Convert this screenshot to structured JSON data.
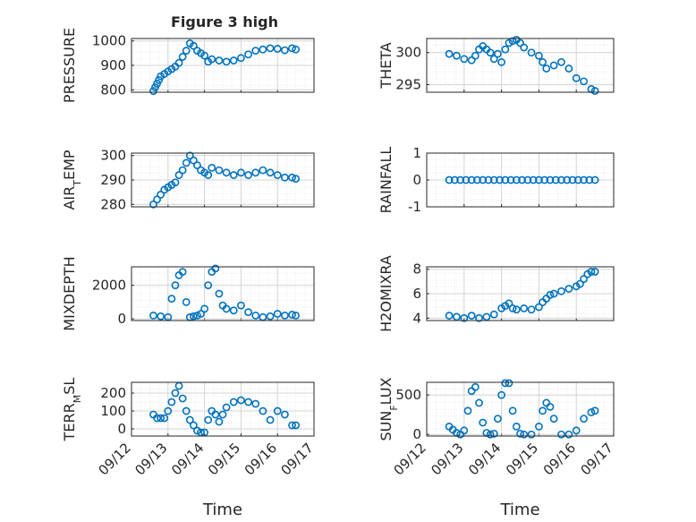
{
  "figure": {
    "title": "Figure 3 high",
    "marker_color": "#0072BD",
    "axis_color": "#262626",
    "grid_color": "#d4d4d4",
    "minor_grid_color": "#e6e6e6",
    "background": "#ffffff"
  },
  "chart_data": [
    {
      "type": "scatter",
      "title": "Figure 3 high",
      "ylabel": "PRESSURE",
      "ylim": [
        790,
        1010
      ],
      "yticks": [
        800,
        900,
        1000
      ],
      "ytick_labels": [
        "800",
        "900",
        "1000"
      ],
      "xlim": [
        0,
        5
      ],
      "xticks": [
        0,
        1,
        2,
        3,
        4,
        5
      ],
      "xtick_labels": [],
      "grid": true,
      "x": [
        0.6,
        0.65,
        0.7,
        0.75,
        0.8,
        0.9,
        1.0,
        1.1,
        1.2,
        1.3,
        1.4,
        1.5,
        1.6,
        1.7,
        1.8,
        1.9,
        2.0,
        2.1,
        2.2,
        2.4,
        2.6,
        2.8,
        3.0,
        3.2,
        3.4,
        3.6,
        3.8,
        4.0,
        4.2,
        4.4,
        4.5
      ],
      "values": [
        795,
        810,
        825,
        840,
        855,
        865,
        875,
        885,
        895,
        910,
        935,
        960,
        990,
        980,
        960,
        950,
        940,
        915,
        925,
        920,
        915,
        920,
        930,
        945,
        960,
        965,
        970,
        968,
        962,
        970,
        965
      ]
    },
    {
      "type": "scatter",
      "ylabel": "THETA",
      "ylim": [
        293.8,
        302.2
      ],
      "yticks": [
        295,
        300
      ],
      "ytick_labels": [
        "295",
        "300"
      ],
      "xlim": [
        0,
        5
      ],
      "xticks": [
        0,
        1,
        2,
        3,
        4,
        5
      ],
      "xtick_labels": [],
      "grid": true,
      "x": [
        0.6,
        0.8,
        1.0,
        1.2,
        1.3,
        1.4,
        1.5,
        1.6,
        1.7,
        1.8,
        1.9,
        2.0,
        2.1,
        2.2,
        2.3,
        2.4,
        2.5,
        2.6,
        2.8,
        3.0,
        3.1,
        3.2,
        3.4,
        3.6,
        3.8,
        4.0,
        4.2,
        4.4,
        4.5
      ],
      "values": [
        299.8,
        299.5,
        299.0,
        298.8,
        299.5,
        300.5,
        301.0,
        300.5,
        300.0,
        299.0,
        299.8,
        298.5,
        300.5,
        301.5,
        301.8,
        302.0,
        301.5,
        300.8,
        300.0,
        299.5,
        298.5,
        297.5,
        298.0,
        298.5,
        297.5,
        296.0,
        295.5,
        294.3,
        294.0
      ]
    },
    {
      "type": "scatter",
      "ylabel": "AIR_TEMP",
      "ylim": [
        279,
        301
      ],
      "yticks": [
        280,
        290,
        300
      ],
      "ytick_labels": [
        "280",
        "290",
        "300"
      ],
      "xlim": [
        0,
        5
      ],
      "xticks": [
        0,
        1,
        2,
        3,
        4,
        5
      ],
      "xtick_labels": [],
      "grid": true,
      "x": [
        0.6,
        0.7,
        0.8,
        0.9,
        1.0,
        1.1,
        1.2,
        1.3,
        1.4,
        1.5,
        1.6,
        1.7,
        1.8,
        1.9,
        2.0,
        2.1,
        2.2,
        2.4,
        2.6,
        2.8,
        3.0,
        3.2,
        3.4,
        3.6,
        3.8,
        4.0,
        4.2,
        4.4,
        4.5
      ],
      "values": [
        280,
        282,
        284,
        286,
        287,
        288,
        289,
        292,
        294,
        297,
        300,
        298,
        296,
        294,
        293,
        292,
        295,
        294,
        293,
        292,
        293,
        292,
        293,
        294,
        293,
        292,
        291,
        291,
        290.5
      ]
    },
    {
      "type": "scatter",
      "ylabel": "RAINFALL",
      "ylim": [
        -1,
        1
      ],
      "yticks": [
        -1,
        0,
        1
      ],
      "ytick_labels": [
        "-1",
        "0",
        "1"
      ],
      "xlim": [
        0,
        5
      ],
      "xticks": [
        0,
        1,
        2,
        3,
        4,
        5
      ],
      "xtick_labels": [],
      "grid": true,
      "x": [
        0.6,
        0.75,
        0.9,
        1.05,
        1.2,
        1.35,
        1.5,
        1.65,
        1.8,
        1.95,
        2.1,
        2.25,
        2.4,
        2.55,
        2.7,
        2.85,
        3.0,
        3.15,
        3.3,
        3.45,
        3.6,
        3.75,
        3.9,
        4.05,
        4.2,
        4.35,
        4.5
      ],
      "values": [
        0,
        0,
        0,
        0,
        0,
        0,
        0,
        0,
        0,
        0,
        0,
        0,
        0,
        0,
        0,
        0,
        0,
        0,
        0,
        0,
        0,
        0,
        0,
        0,
        0,
        0,
        0
      ]
    },
    {
      "type": "scatter",
      "ylabel": "MIXDEPTH",
      "ylim": [
        -100,
        3100
      ],
      "yticks": [
        0,
        2000
      ],
      "ytick_labels": [
        "0",
        "2000"
      ],
      "xlim": [
        0,
        5
      ],
      "xticks": [
        0,
        1,
        2,
        3,
        4,
        5
      ],
      "xtick_labels": [],
      "grid": true,
      "x": [
        0.6,
        0.8,
        1.0,
        1.1,
        1.2,
        1.3,
        1.4,
        1.5,
        1.6,
        1.7,
        1.8,
        1.9,
        2.0,
        2.1,
        2.2,
        2.3,
        2.4,
        2.5,
        2.6,
        2.8,
        3.0,
        3.2,
        3.4,
        3.6,
        3.8,
        4.0,
        4.2,
        4.4,
        4.5
      ],
      "values": [
        200,
        150,
        100,
        1200,
        2000,
        2600,
        2800,
        1000,
        100,
        150,
        200,
        300,
        600,
        2000,
        2800,
        3000,
        1500,
        800,
        600,
        500,
        800,
        400,
        200,
        100,
        150,
        300,
        200,
        250,
        200
      ]
    },
    {
      "type": "scatter",
      "ylabel": "H2OMIXRA",
      "ylim": [
        3.8,
        8.2
      ],
      "yticks": [
        4,
        6,
        8
      ],
      "ytick_labels": [
        "4",
        "6",
        "8"
      ],
      "xlim": [
        0,
        5
      ],
      "xticks": [
        0,
        1,
        2,
        3,
        4,
        5
      ],
      "xtick_labels": [],
      "grid": true,
      "x": [
        0.6,
        0.8,
        1.0,
        1.2,
        1.4,
        1.6,
        1.8,
        2.0,
        2.1,
        2.2,
        2.3,
        2.4,
        2.6,
        2.8,
        3.0,
        3.1,
        3.2,
        3.3,
        3.4,
        3.6,
        3.8,
        4.0,
        4.1,
        4.2,
        4.3,
        4.4,
        4.5
      ],
      "values": [
        4.2,
        4.1,
        4.0,
        4.2,
        4.0,
        4.1,
        4.3,
        4.8,
        5.0,
        5.2,
        4.8,
        4.7,
        4.8,
        4.7,
        4.9,
        5.3,
        5.6,
        5.9,
        6.0,
        6.2,
        6.4,
        6.6,
        6.8,
        7.2,
        7.6,
        7.8,
        7.8
      ]
    },
    {
      "type": "scatter",
      "ylabel": "TERR_MSL",
      "ylim": [
        -40,
        260
      ],
      "yticks": [
        0,
        100,
        200
      ],
      "ytick_labels": [
        "0",
        "100",
        "200"
      ],
      "xlim": [
        0,
        5
      ],
      "xticks": [
        0,
        1,
        2,
        3,
        4,
        5
      ],
      "xtick_labels": [
        "09/12",
        "09/13",
        "09/14",
        "09/15",
        "09/16",
        "09/17"
      ],
      "xlabel": "Time",
      "grid": true,
      "x": [
        0.6,
        0.7,
        0.8,
        0.9,
        1.0,
        1.1,
        1.2,
        1.3,
        1.4,
        1.5,
        1.6,
        1.7,
        1.8,
        1.9,
        2.0,
        2.1,
        2.2,
        2.3,
        2.4,
        2.5,
        2.6,
        2.8,
        3.0,
        3.2,
        3.4,
        3.6,
        3.8,
        4.0,
        4.2,
        4.4,
        4.5
      ],
      "values": [
        80,
        60,
        60,
        60,
        100,
        150,
        200,
        240,
        170,
        100,
        50,
        20,
        -10,
        -20,
        -20,
        50,
        100,
        80,
        40,
        80,
        120,
        150,
        160,
        150,
        140,
        100,
        50,
        100,
        80,
        20,
        20
      ]
    },
    {
      "type": "scatter",
      "ylabel": "SUN_FLUX",
      "ylim": [
        -20,
        660
      ],
      "yticks": [
        0,
        500
      ],
      "ytick_labels": [
        "0",
        "500"
      ],
      "xlim": [
        0,
        5
      ],
      "xticks": [
        0,
        1,
        2,
        3,
        4,
        5
      ],
      "xtick_labels": [
        "09/12",
        "09/13",
        "09/14",
        "09/15",
        "09/16",
        "09/17"
      ],
      "xlabel": "Time",
      "grid": true,
      "x": [
        0.6,
        0.7,
        0.8,
        0.9,
        1.0,
        1.1,
        1.2,
        1.3,
        1.4,
        1.5,
        1.6,
        1.7,
        1.8,
        1.9,
        2.0,
        2.1,
        2.2,
        2.3,
        2.4,
        2.5,
        2.6,
        2.8,
        3.0,
        3.1,
        3.2,
        3.3,
        3.4,
        3.6,
        3.8,
        4.0,
        4.2,
        4.4,
        4.5
      ],
      "values": [
        100,
        60,
        20,
        0,
        50,
        300,
        550,
        600,
        400,
        150,
        20,
        0,
        10,
        200,
        500,
        650,
        650,
        300,
        100,
        10,
        0,
        0,
        100,
        300,
        400,
        350,
        200,
        0,
        0,
        50,
        200,
        280,
        300
      ]
    }
  ]
}
